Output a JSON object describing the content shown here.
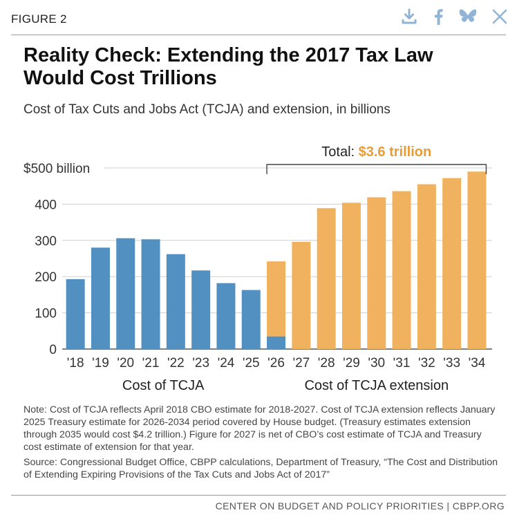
{
  "header": {
    "figure_label": "FIGURE 2",
    "share": [
      {
        "icon": "download-icon"
      },
      {
        "icon": "facebook-icon"
      },
      {
        "icon": "bluesky-icon"
      },
      {
        "icon": "x-icon"
      }
    ]
  },
  "title": "Reality Check: Extending the 2017 Tax Law Would Cost Trillions",
  "subtitle": "Cost of Tax Cuts and Jobs Act (TCJA) and extension, in billions",
  "colors": {
    "tcja": "#5390c2",
    "extension": "#f0b25f",
    "total_value": "#e99b35",
    "grid": "#cfcfcf"
  },
  "chart_data": {
    "type": "bar",
    "categories": [
      "'18",
      "'19",
      "'20",
      "'21",
      "'22",
      "'23",
      "'24",
      "'25",
      "'26",
      "'27",
      "'28",
      "'29",
      "'30",
      "'31",
      "'32",
      "'33",
      "'34"
    ],
    "series": [
      {
        "name": "Cost of TCJA",
        "values": [
          193,
          280,
          306,
          303,
          262,
          217,
          182,
          163,
          35,
          0,
          0,
          0,
          0,
          0,
          0,
          0,
          0
        ]
      },
      {
        "name": "Cost of TCJA extension",
        "values": [
          0,
          0,
          0,
          0,
          0,
          0,
          0,
          0,
          207,
          296,
          389,
          404,
          419,
          436,
          455,
          472,
          490
        ]
      }
    ],
    "ylim": [
      0,
      500
    ],
    "yticks": [
      0,
      100,
      200,
      300,
      400,
      500
    ],
    "ytick_labels": [
      "0",
      "100",
      "200",
      "300",
      "400",
      "$500 billion"
    ],
    "group_labels": [
      "Cost of TCJA",
      "Cost of TCJA extension"
    ],
    "total_annotation": {
      "prefix": "Total: ",
      "value": "$3.6 trillion",
      "from": "'26",
      "to": "'34"
    }
  },
  "note": "Note: Cost of TCJA reflects April 2018 CBO estimate for 2018-2027. Cost of TCJA extension reflects January 2025 Treasury estimate for 2026-2034 period covered by House budget. (Treasury estimates extension through 2035 would cost $4.2 trillion.) Figure for 2027 is net of CBO’s cost estimate of TCJA and Treasury cost estimate of extension for that year.",
  "source": "Source: Congressional Budget Office, CBPP calculations, Department of Treasury, “The Cost and Distribution of Extending Expiring Provisions of the Tax Cuts and Jobs Act of 2017”",
  "footer": "CENTER ON BUDGET AND POLICY PRIORITIES | CBPP.ORG"
}
